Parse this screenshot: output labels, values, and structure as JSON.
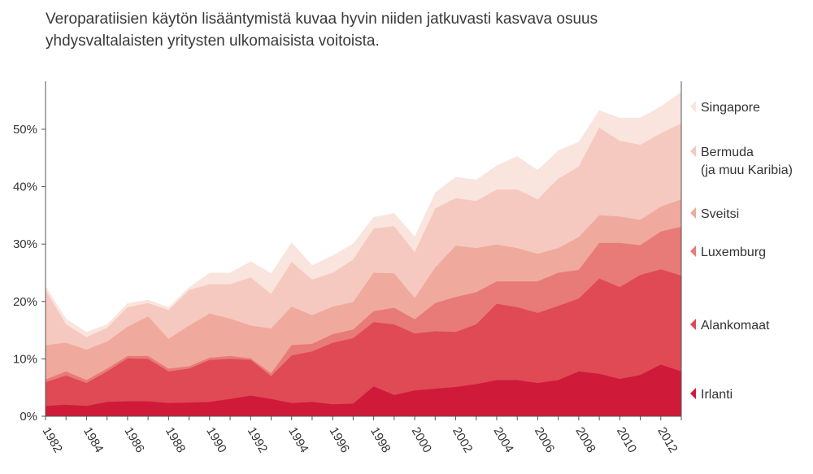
{
  "title": "Veroparatiisien käytön lisääntymistä kuvaa hyvin niiden jatkuvasti kasvava osuus yhdysvaltalaisten yritysten ulkomaisista voitoista.",
  "chart_data": {
    "type": "area",
    "stacked": true,
    "title": "Veroparatiisien käytön lisääntymistä kuvaa hyvin niiden jatkuvasti kasvava osuus yhdysvaltalaisten yritysten ulkomaisista voitoista.",
    "xlabel": "",
    "ylabel": "",
    "x": [
      1982,
      1983,
      1984,
      1985,
      1986,
      1987,
      1988,
      1989,
      1990,
      1991,
      1992,
      1993,
      1994,
      1995,
      1996,
      1997,
      1998,
      1999,
      2000,
      2001,
      2002,
      2003,
      2004,
      2005,
      2006,
      2007,
      2008,
      2009,
      2010,
      2011,
      2012,
      2013
    ],
    "xticks": [
      "1982",
      "1984",
      "1986",
      "1988",
      "1990",
      "1992",
      "1994",
      "1996",
      "1998",
      "2000",
      "2002",
      "2004",
      "2006",
      "2008",
      "2010",
      "2012"
    ],
    "yticks": [
      "0%",
      "10%",
      "20%",
      "30%",
      "40%",
      "50%"
    ],
    "ylim": [
      0,
      57
    ],
    "legend_position": "right",
    "grid": false,
    "series": [
      {
        "name": "Irlanti",
        "color": "#d01a3a",
        "cumulative": [
          1.8,
          2.0,
          1.8,
          2.5,
          2.6,
          2.6,
          2.3,
          2.4,
          2.5,
          3.0,
          3.6,
          3.0,
          2.3,
          2.5,
          2.1,
          2.2,
          5.2,
          3.7,
          4.5,
          4.8,
          5.1,
          5.6,
          6.3,
          6.3,
          5.8,
          6.3,
          7.8,
          7.4,
          6.5,
          7.2,
          9.0,
          7.8
        ]
      },
      {
        "name": "Alankomaat",
        "color": "#df4a55",
        "cumulative": [
          5.9,
          7.1,
          5.8,
          7.8,
          10.1,
          10.0,
          7.8,
          8.3,
          9.8,
          10.0,
          9.8,
          7.0,
          10.6,
          11.3,
          12.8,
          13.6,
          16.4,
          16.0,
          14.4,
          14.8,
          14.7,
          16.0,
          19.6,
          19.0,
          18.0,
          19.2,
          20.5,
          24.0,
          22.5,
          24.6,
          25.6,
          24.5
        ]
      },
      {
        "name": "Luxemburg",
        "color": "#e87a78",
        "cumulative": [
          6.4,
          7.8,
          6.3,
          8.3,
          10.5,
          10.5,
          8.3,
          8.7,
          10.2,
          10.5,
          10.1,
          7.5,
          12.4,
          12.6,
          14.3,
          15.1,
          18.3,
          18.9,
          16.9,
          19.7,
          20.8,
          21.6,
          23.5,
          23.5,
          23.5,
          25.0,
          25.5,
          30.2,
          30.2,
          29.8,
          32.2,
          33.0
        ]
      },
      {
        "name": "Sveitsi",
        "color": "#f0a99d",
        "cumulative": [
          12.4,
          12.8,
          11.6,
          13.0,
          15.6,
          17.4,
          13.5,
          15.8,
          17.9,
          17.0,
          15.8,
          15.3,
          19.1,
          17.6,
          19.1,
          19.9,
          25.0,
          24.9,
          20.6,
          25.9,
          29.7,
          29.3,
          29.9,
          29.3,
          28.3,
          29.3,
          31.2,
          35.0,
          34.8,
          34.2,
          36.5,
          37.8
        ]
      },
      {
        "name": "Bermuda\n(ja muu Karibia)",
        "color": "#f5c9bf",
        "cumulative": [
          22.0,
          16.0,
          13.8,
          15.4,
          19.0,
          19.7,
          18.5,
          22.0,
          23.0,
          23.0,
          24.2,
          21.3,
          26.9,
          23.8,
          25.0,
          27.3,
          32.7,
          33.1,
          28.6,
          36.2,
          38.0,
          37.5,
          39.5,
          39.5,
          37.8,
          41.4,
          43.5,
          50.3,
          48.0,
          47.3,
          49.3,
          51.0
        ]
      },
      {
        "name": "Singapore",
        "color": "#fae4de",
        "cumulative": [
          22.7,
          17.0,
          14.7,
          16.0,
          19.7,
          20.3,
          19.0,
          22.5,
          25.0,
          25.0,
          27.0,
          24.9,
          30.3,
          26.3,
          28.0,
          30.1,
          34.7,
          35.4,
          31.3,
          39.0,
          41.7,
          41.2,
          43.7,
          45.3,
          42.9,
          46.3,
          47.8,
          53.3,
          52.0,
          52.0,
          54.0,
          56.5
        ]
      }
    ]
  }
}
